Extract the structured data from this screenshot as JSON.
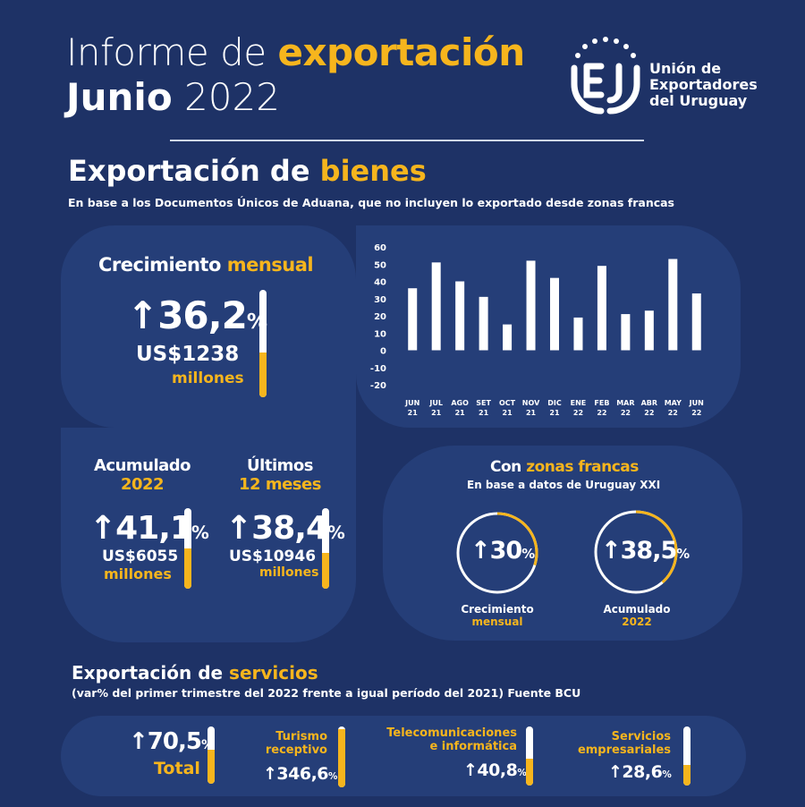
{
  "header": {
    "title_part1": "Informe de ",
    "title_part2": "exportación",
    "month": "Junio",
    "year": "2022",
    "org_name": "Unión de\nExportadores\ndel Uruguay"
  },
  "goods": {
    "title_part1": "Exportación de ",
    "title_part2": "bienes",
    "subtitle": "En base a los Documentos Únicos de Aduana, que no incluyen lo exportado desde zonas francas",
    "monthly": {
      "label_part1": "Crecimiento ",
      "label_part2": "mensual",
      "arrow": "↑",
      "value": "36,2",
      "pct": "%",
      "amount": "US$1238",
      "unit": "millones",
      "bar_fill": 0.42
    },
    "accumulated": {
      "label1": "Acumulado",
      "label2": "2022",
      "arrow": "↑",
      "value": "41,1",
      "pct": "%",
      "amount": "US$6055",
      "unit": "millones",
      "bar_fill": 0.5
    },
    "last12": {
      "label1": "Últimos",
      "label2": "12 meses",
      "arrow": "↑",
      "value": "38,4",
      "pct": "%",
      "amount": "US$10946",
      "unit": "millones",
      "bar_fill": 0.45
    },
    "free_zones": {
      "title_part1": "Con ",
      "title_part2": "zonas francas",
      "subtitle": "En base a datos de Uruguay XXI",
      "monthly": {
        "arrow": "↑",
        "value": "30",
        "pct": "%",
        "label1": "Crecimiento",
        "label2": "mensual",
        "ring_fill": 0.3
      },
      "accumulated": {
        "arrow": "↑",
        "value": "38,5",
        "pct": "%",
        "label1": "Acumulado",
        "label2": "2022",
        "ring_fill": 0.385
      }
    }
  },
  "chart_data": {
    "type": "bar",
    "categories": [
      "JUN 21",
      "JUL 21",
      "AGO 21",
      "SET 21",
      "OCT 21",
      "NOV 21",
      "DIC 21",
      "ENE 22",
      "FEB 22",
      "MAR 22",
      "ABR 22",
      "MAY 22",
      "JUN 22"
    ],
    "category_lines": [
      [
        "JUN",
        "21"
      ],
      [
        "JUL",
        "21"
      ],
      [
        "AGO",
        "21"
      ],
      [
        "SET",
        "21"
      ],
      [
        "OCT",
        "21"
      ],
      [
        "NOV",
        "21"
      ],
      [
        "DIC",
        "21"
      ],
      [
        "ENE",
        "22"
      ],
      [
        "FEB",
        "22"
      ],
      [
        "MAR",
        "22"
      ],
      [
        "ABR",
        "22"
      ],
      [
        "MAY",
        "22"
      ],
      [
        "JUN",
        "22"
      ]
    ],
    "values": [
      36,
      51,
      40,
      31,
      15,
      52,
      42,
      19,
      49,
      21,
      23,
      53,
      33
    ],
    "yticks": [
      60,
      50,
      40,
      30,
      20,
      10,
      0,
      -10,
      -20
    ],
    "ylim": [
      -20,
      60
    ],
    "grid": false
  },
  "services": {
    "title_part1": "Exportación de ",
    "title_part2": "servicios",
    "subtitle": "(var% del primer trimestre del 2022 frente a igual período del 2021) Fuente BCU",
    "total": {
      "arrow": "↑",
      "value": "70,5",
      "pct": "%",
      "label": "Total",
      "bar_fill": 0.6
    },
    "items": [
      {
        "category": "Turismo\nreceptivo",
        "arrow": "↑",
        "value": "346,6",
        "pct": "%",
        "bar_fill": 0.95
      },
      {
        "category": "Telecomunicaciones\ne informática",
        "arrow": "↑",
        "value": "40,8",
        "pct": "%",
        "bar_fill": 0.45
      },
      {
        "category": "Servicios\nempresariales",
        "arrow": "↑",
        "value": "28,6",
        "pct": "%",
        "bar_fill": 0.35
      }
    ]
  },
  "colors": {
    "background": "#1e3266",
    "panel": "#253e78",
    "accent": "#f6b51d",
    "text": "#ffffff"
  }
}
